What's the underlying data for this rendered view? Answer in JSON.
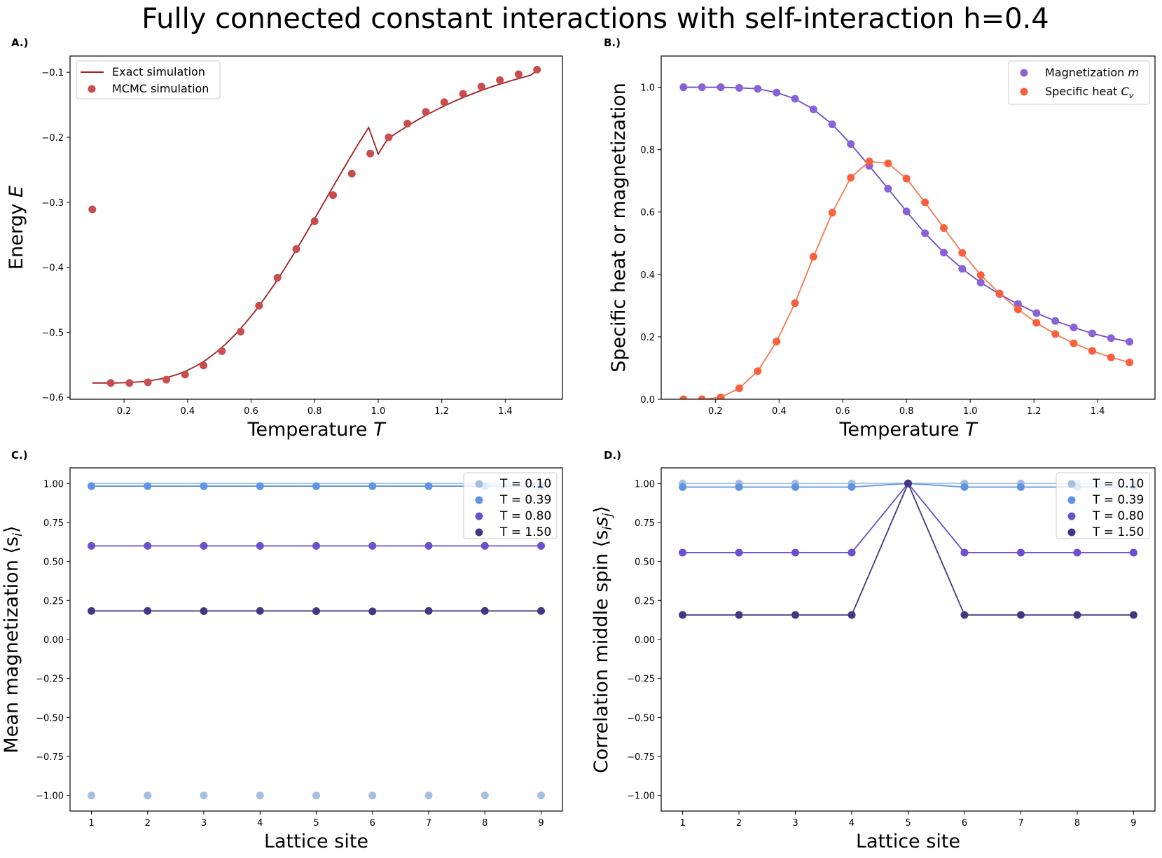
{
  "title": "Fully connected constant interactions with self-interaction h=0.4",
  "colors": {
    "exact": "#a51d1f",
    "mcmc": "#c74d4f",
    "magnetization_line": "#6a4fc9",
    "magnetization_points": "#8862d6",
    "specific_heat_line": "#f7794a",
    "specific_heat_points": "#f9603c",
    "T010": "#a7bfdf",
    "T039": "#5e94e4",
    "T080": "#6a4fcf",
    "T150": "#433781"
  },
  "chart_data": [
    {
      "id": "A",
      "panel_label": "A.)",
      "type": "line",
      "xlabel": "Temperature ",
      "xlabel_var": "T",
      "ylabel": "Energy ",
      "ylabel_var": "E",
      "xlim": [
        0.03,
        1.58
      ],
      "ylim": [
        -0.603,
        -0.075
      ],
      "xticks": [
        0.2,
        0.4,
        0.6,
        0.8,
        1.0,
        1.2,
        1.4
      ],
      "xtick_labels": [
        "0.2",
        "0.4",
        "0.6",
        "0.8",
        "1.0",
        "1.2",
        "1.4"
      ],
      "yticks": [
        -0.6,
        -0.5,
        -0.4,
        -0.3,
        -0.2,
        -0.1
      ],
      "ytick_labels": [
        "−0.6",
        "−0.5",
        "−0.4",
        "−0.3",
        "−0.2",
        "−0.1"
      ],
      "legend_position": "upper-left",
      "series": [
        {
          "name": "Exact simulation",
          "kind": "line",
          "x": [
            0.1,
            0.13,
            0.16,
            0.19,
            0.22,
            0.25,
            0.28,
            0.31,
            0.34,
            0.37,
            0.4,
            0.43,
            0.46,
            0.49,
            0.52,
            0.55,
            0.58,
            0.61,
            0.64,
            0.67,
            0.7,
            0.73,
            0.76,
            0.79,
            0.82,
            0.85,
            0.88,
            0.91,
            0.94,
            0.97,
            1.0,
            1.03,
            1.06,
            1.09,
            1.12,
            1.15,
            1.18,
            1.21,
            1.24,
            1.27,
            1.3,
            1.33,
            1.36,
            1.39,
            1.42,
            1.45,
            1.48,
            1.5
          ],
          "y": [
            -0.578,
            -0.578,
            -0.578,
            -0.5778,
            -0.5772,
            -0.5762,
            -0.5746,
            -0.5722,
            -0.5689,
            -0.5644,
            -0.5585,
            -0.551,
            -0.5418,
            -0.5308,
            -0.518,
            -0.5034,
            -0.487,
            -0.469,
            -0.4495,
            -0.4285,
            -0.4062,
            -0.3828,
            -0.3585,
            -0.3336,
            -0.3083,
            -0.2828,
            -0.2575,
            -0.2325,
            -0.2082,
            -0.1849,
            -0.2258,
            -0.2025,
            -0.1927,
            -0.1833,
            -0.1745,
            -0.1662,
            -0.1585,
            -0.1513,
            -0.1446,
            -0.1383,
            -0.1325,
            -0.127,
            -0.1219,
            -0.1172,
            -0.1127,
            -0.1085,
            -0.1046,
            -0.097
          ]
        },
        {
          "name": "MCMC simulation",
          "kind": "scatter",
          "x": [
            0.1,
            0.158,
            0.217,
            0.275,
            0.333,
            0.392,
            0.45,
            0.508,
            0.567,
            0.625,
            0.683,
            0.742,
            0.8,
            0.858,
            0.917,
            0.975,
            1.033,
            1.092,
            1.15,
            1.208,
            1.267,
            1.325,
            1.383,
            1.442,
            1.5
          ],
          "y": [
            -0.311,
            -0.578,
            -0.578,
            -0.577,
            -0.573,
            -0.565,
            -0.551,
            -0.529,
            -0.499,
            -0.459,
            -0.416,
            -0.372,
            -0.329,
            -0.289,
            -0.256,
            -0.225,
            -0.2,
            -0.179,
            -0.161,
            -0.146,
            -0.133,
            -0.122,
            -0.112,
            -0.103,
            -0.096
          ]
        }
      ]
    },
    {
      "id": "B",
      "panel_label": "B.)",
      "type": "line",
      "xlabel": "Temperature ",
      "xlabel_var": "T",
      "ylabel": "Specific heat or magnetization",
      "xlim": [
        0.03,
        1.58
      ],
      "ylim": [
        0,
        1.1
      ],
      "xticks": [
        0.2,
        0.4,
        0.6,
        0.8,
        1.0,
        1.2,
        1.4
      ],
      "xtick_labels": [
        "0.2",
        "0.4",
        "0.6",
        "0.8",
        "1.0",
        "1.2",
        "1.4"
      ],
      "yticks": [
        0.0,
        0.2,
        0.4,
        0.6,
        0.8,
        1.0
      ],
      "ytick_labels": [
        "0.0",
        "0.2",
        "0.4",
        "0.6",
        "0.8",
        "1.0"
      ],
      "legend_position": "upper-right",
      "series": [
        {
          "name": "Magnetization ",
          "name_var": "m",
          "kind": "line+scatter",
          "x": [
            0.1,
            0.158,
            0.217,
            0.275,
            0.333,
            0.392,
            0.45,
            0.508,
            0.567,
            0.625,
            0.683,
            0.742,
            0.8,
            0.858,
            0.917,
            0.975,
            1.033,
            1.092,
            1.15,
            1.208,
            1.267,
            1.325,
            1.383,
            1.442,
            1.5
          ],
          "y": [
            1.0,
            1.0,
            1.0,
            0.998,
            0.995,
            0.983,
            0.963,
            0.929,
            0.881,
            0.818,
            0.748,
            0.675,
            0.602,
            0.532,
            0.47,
            0.418,
            0.374,
            0.337,
            0.305,
            0.276,
            0.251,
            0.23,
            0.211,
            0.196,
            0.184
          ]
        },
        {
          "name": "Specific heat ",
          "name_var": "C",
          "name_sub": "v",
          "kind": "line+scatter",
          "x": [
            0.1,
            0.158,
            0.217,
            0.275,
            0.333,
            0.392,
            0.45,
            0.508,
            0.567,
            0.625,
            0.683,
            0.742,
            0.8,
            0.858,
            0.917,
            0.975,
            1.033,
            1.092,
            1.15,
            1.208,
            1.267,
            1.325,
            1.383,
            1.442,
            1.5
          ],
          "y": [
            0.0,
            0.0,
            0.006,
            0.035,
            0.09,
            0.185,
            0.308,
            0.457,
            0.598,
            0.71,
            0.762,
            0.756,
            0.707,
            0.631,
            0.549,
            0.469,
            0.398,
            0.339,
            0.288,
            0.245,
            0.209,
            0.179,
            0.155,
            0.134,
            0.118
          ]
        }
      ]
    },
    {
      "id": "C",
      "panel_label": "C.)",
      "type": "line",
      "xlabel": "Lattice site",
      "ylabel": "Mean magnetization ",
      "ylabel_var": "⟨s",
      "ylabel_sub": "i",
      "ylabel_end": "⟩",
      "xlim": [
        0.62,
        9.38
      ],
      "ylim": [
        -1.1,
        1.1
      ],
      "xticks": [
        1,
        2,
        3,
        4,
        5,
        6,
        7,
        8,
        9
      ],
      "xtick_labels": [
        "1",
        "2",
        "3",
        "4",
        "5",
        "6",
        "7",
        "8",
        "9"
      ],
      "yticks": [
        -1.0,
        -0.75,
        -0.5,
        -0.25,
        0.0,
        0.25,
        0.5,
        0.75,
        1.0
      ],
      "ytick_labels": [
        "−1.00",
        "−0.75",
        "−0.50",
        "−0.25",
        "0.00",
        "0.25",
        "0.50",
        "0.75",
        "1.00"
      ],
      "legend_position": "upper-right",
      "series": [
        {
          "name": "T = 0.10",
          "color_key": "T010",
          "x": [
            1,
            2,
            3,
            4,
            5,
            6,
            7,
            8,
            9
          ],
          "line_y": [
            1.0,
            1.0,
            1.0,
            1.0,
            1.0,
            1.0,
            1.0,
            1.0,
            1.0
          ],
          "points_y": [
            -1.0,
            -1.0,
            -1.0,
            -1.0,
            -1.0,
            -1.0,
            -1.0,
            -1.0,
            -1.0
          ]
        },
        {
          "name": "T = 0.39",
          "color_key": "T039",
          "x": [
            1,
            2,
            3,
            4,
            5,
            6,
            7,
            8,
            9
          ],
          "line_y": [
            0.983,
            0.983,
            0.983,
            0.983,
            0.983,
            0.983,
            0.983,
            0.983,
            0.983
          ],
          "points_y": [
            0.983,
            0.983,
            0.983,
            0.983,
            0.983,
            0.983,
            0.983,
            0.983,
            0.983
          ]
        },
        {
          "name": "T = 0.80",
          "color_key": "T080",
          "x": [
            1,
            2,
            3,
            4,
            5,
            6,
            7,
            8,
            9
          ],
          "line_y": [
            0.6,
            0.6,
            0.6,
            0.6,
            0.6,
            0.6,
            0.6,
            0.6,
            0.6
          ],
          "points_y": [
            0.6,
            0.6,
            0.6,
            0.6,
            0.6,
            0.6,
            0.6,
            0.6,
            0.6
          ]
        },
        {
          "name": "T = 1.50",
          "color_key": "T150",
          "x": [
            1,
            2,
            3,
            4,
            5,
            6,
            7,
            8,
            9
          ],
          "line_y": [
            0.183,
            0.183,
            0.183,
            0.183,
            0.183,
            0.183,
            0.183,
            0.183,
            0.183
          ],
          "points_y": [
            0.183,
            0.183,
            0.182,
            0.183,
            0.182,
            0.18,
            0.183,
            0.183,
            0.183
          ]
        }
      ]
    },
    {
      "id": "D",
      "panel_label": "D.)",
      "type": "line",
      "xlabel": "Lattice site",
      "ylabel": "Correlation middle spin ",
      "ylabel_var": "⟨s",
      "ylabel_sub": "i",
      "ylabel_var2": "s",
      "ylabel_sub2": "j",
      "ylabel_end": "⟩",
      "xlim": [
        0.62,
        9.38
      ],
      "ylim": [
        -1.1,
        1.1
      ],
      "xticks": [
        1,
        2,
        3,
        4,
        5,
        6,
        7,
        8,
        9
      ],
      "xtick_labels": [
        "1",
        "2",
        "3",
        "4",
        "5",
        "6",
        "7",
        "8",
        "9"
      ],
      "yticks": [
        -1.0,
        -0.75,
        -0.5,
        -0.25,
        0.0,
        0.25,
        0.5,
        0.75,
        1.0
      ],
      "ytick_labels": [
        "−1.00",
        "−0.75",
        "−0.50",
        "−0.25",
        "0.00",
        "0.25",
        "0.50",
        "0.75",
        "1.00"
      ],
      "legend_position": "upper-right",
      "series": [
        {
          "name": "T = 0.10",
          "color_key": "T010",
          "x": [
            1,
            2,
            3,
            4,
            5,
            6,
            7,
            8,
            9
          ],
          "line_y": [
            1.0,
            1.0,
            1.0,
            1.0,
            1.0,
            1.0,
            1.0,
            1.0,
            1.0
          ],
          "points_y": [
            1.0,
            1.0,
            1.0,
            1.0,
            1.0,
            1.0,
            1.0,
            1.0,
            1.0
          ]
        },
        {
          "name": "T = 0.39",
          "color_key": "T039",
          "x": [
            1,
            2,
            3,
            4,
            5,
            6,
            7,
            8,
            9
          ],
          "line_y": [
            0.977,
            0.977,
            0.977,
            0.977,
            1.0,
            0.977,
            0.977,
            0.977,
            0.977
          ],
          "points_y": [
            0.977,
            0.977,
            0.977,
            0.977,
            1.0,
            0.977,
            0.977,
            0.977,
            0.977
          ]
        },
        {
          "name": "T = 0.80",
          "color_key": "T080",
          "x": [
            1,
            2,
            3,
            4,
            5,
            6,
            7,
            8,
            9
          ],
          "line_y": [
            0.557,
            0.557,
            0.557,
            0.557,
            1.0,
            0.557,
            0.557,
            0.557,
            0.557
          ],
          "points_y": [
            0.557,
            0.557,
            0.557,
            0.557,
            1.0,
            0.557,
            0.557,
            0.557,
            0.557
          ]
        },
        {
          "name": "T = 1.50",
          "color_key": "T150",
          "x": [
            1,
            2,
            3,
            4,
            5,
            6,
            7,
            8,
            9
          ],
          "line_y": [
            0.157,
            0.157,
            0.157,
            0.157,
            1.0,
            0.157,
            0.157,
            0.157,
            0.157
          ],
          "points_y": [
            0.157,
            0.157,
            0.157,
            0.157,
            1.0,
            0.157,
            0.157,
            0.157,
            0.157
          ]
        }
      ]
    }
  ]
}
